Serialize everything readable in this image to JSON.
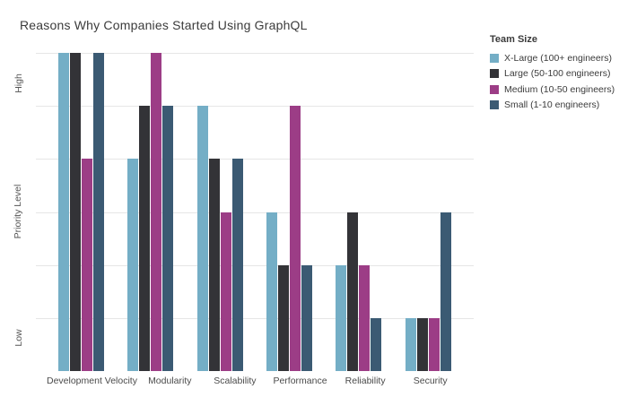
{
  "title": "Reasons Why Companies Started Using GraphQL",
  "axes": {
    "y_tick_high": "High",
    "y_tick_low": "Low",
    "y_axis_title": "Priority Level"
  },
  "legend": {
    "title": "Team Size"
  },
  "chart_data": {
    "type": "bar",
    "title": "Reasons Why Companies Started Using GraphQL",
    "categories": [
      "Development Velocity",
      "Modularity",
      "Scalability",
      "Performance",
      "Reliability",
      "Security"
    ],
    "series": [
      {
        "name": "X-Large (100+ engineers)",
        "color": "#74aec6",
        "values": [
          6,
          4,
          5,
          3,
          2,
          1
        ]
      },
      {
        "name": "Large (50-100 engineers)",
        "color": "#333337",
        "values": [
          6,
          5,
          4,
          2,
          3,
          1
        ]
      },
      {
        "name": "Medium (10-50 engineers)",
        "color": "#9c3d86",
        "values": [
          4,
          6,
          3,
          5,
          2,
          1
        ]
      },
      {
        "name": "Small (1-10 engineers)",
        "color": "#3b5a73",
        "values": [
          6,
          5,
          4,
          2,
          1,
          3
        ]
      }
    ],
    "xlabel": "",
    "ylabel": "Priority Level",
    "ytick_labels": [
      "Low",
      "High"
    ],
    "ylim": [
      0,
      6
    ],
    "grid": true,
    "gridline_color": "#e6e6e6",
    "legend_title": "Team Size",
    "legend_position": "right"
  }
}
